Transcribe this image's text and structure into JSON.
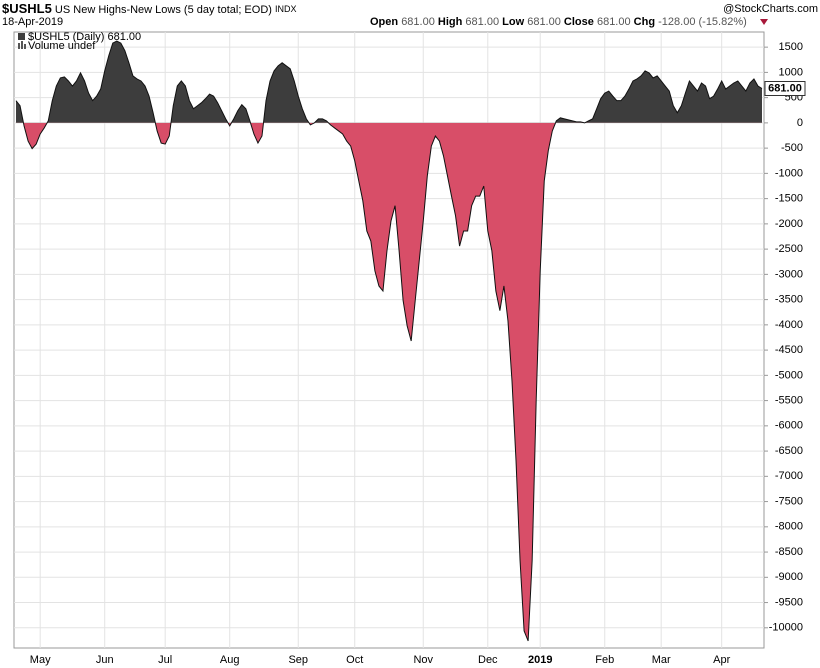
{
  "header": {
    "symbol": "$USHL5",
    "name": "US New Highs-New Lows (5 day total; EOD)",
    "exchange": "INDX",
    "date": "18-Apr-2019",
    "open_label": "Open",
    "open": "681.00",
    "high_label": "High",
    "high": "681.00",
    "low_label": "Low",
    "low": "681.00",
    "close_label": "Close",
    "close": "681.00",
    "chg_label": "Chg",
    "chg": "-128.00 (-15.82%)",
    "source": "@StockCharts.com"
  },
  "chart_data": {
    "type": "area",
    "legend": [
      "$USHL5 (Daily) 681.00",
      "Volume undef"
    ],
    "pos_color": "#3d3d3d",
    "neg_color": "#d84e68",
    "grid": true,
    "ylim": [
      -10400,
      1800
    ],
    "yticks": [
      1500,
      1000,
      500,
      0,
      -500,
      -1000,
      -1500,
      -2000,
      -2500,
      -3000,
      -3500,
      -4000,
      -4500,
      -5000,
      -5500,
      -6000,
      -6500,
      -7000,
      -7500,
      -8000,
      -8500,
      -9000,
      -9500,
      -10000
    ],
    "categories": [
      null,
      null,
      null,
      null,
      null,
      null,
      "May",
      null,
      null,
      null,
      null,
      null,
      null,
      null,
      null,
      null,
      null,
      null,
      null,
      null,
      null,
      null,
      "Jun",
      null,
      null,
      null,
      null,
      null,
      null,
      null,
      null,
      null,
      null,
      null,
      null,
      null,
      null,
      "Jul",
      null,
      null,
      null,
      null,
      null,
      null,
      null,
      null,
      null,
      null,
      null,
      null,
      null,
      null,
      null,
      "Aug",
      null,
      null,
      null,
      null,
      null,
      null,
      null,
      null,
      null,
      null,
      null,
      null,
      null,
      null,
      null,
      null,
      "Sep",
      null,
      null,
      null,
      null,
      null,
      null,
      null,
      null,
      null,
      null,
      null,
      null,
      null,
      "Oct",
      null,
      null,
      null,
      null,
      null,
      null,
      null,
      null,
      null,
      null,
      null,
      null,
      null,
      null,
      null,
      null,
      "Nov",
      null,
      null,
      null,
      null,
      null,
      null,
      null,
      null,
      null,
      null,
      null,
      null,
      null,
      null,
      null,
      "Dec",
      null,
      null,
      null,
      null,
      null,
      null,
      null,
      null,
      null,
      null,
      null,
      null,
      "2019",
      null,
      null,
      null,
      null,
      null,
      null,
      null,
      null,
      null,
      null,
      null,
      null,
      null,
      null,
      null,
      "Feb",
      null,
      null,
      null,
      null,
      null,
      null,
      null,
      null,
      null,
      null,
      null,
      null,
      null,
      "Mar",
      null,
      null,
      null,
      null,
      null,
      null,
      null,
      null,
      null,
      null,
      null,
      null,
      null,
      null,
      "Apr",
      null,
      null,
      null,
      null,
      null,
      null,
      null,
      null,
      null,
      null
    ],
    "values": [
      440,
      340,
      -60,
      -360,
      -510,
      -420,
      -220,
      -100,
      40,
      440,
      730,
      890,
      910,
      830,
      730,
      830,
      990,
      830,
      590,
      440,
      530,
      670,
      1030,
      1330,
      1580,
      1620,
      1580,
      1430,
      1190,
      930,
      870,
      830,
      730,
      530,
      200,
      -160,
      -400,
      -420,
      -260,
      340,
      730,
      830,
      730,
      440,
      280,
      340,
      400,
      480,
      570,
      530,
      400,
      240,
      80,
      -60,
      80,
      240,
      360,
      280,
      40,
      -220,
      -400,
      -260,
      440,
      830,
      1030,
      1130,
      1190,
      1130,
      1070,
      830,
      530,
      280,
      80,
      -40,
      0,
      80,
      80,
      40,
      -40,
      -100,
      -160,
      -220,
      -360,
      -460,
      -750,
      -1150,
      -1540,
      -2140,
      -2340,
      -2930,
      -3230,
      -3330,
      -2530,
      -1940,
      -1640,
      -2530,
      -3520,
      -4020,
      -4320,
      -3520,
      -2730,
      -1940,
      -1050,
      -460,
      -260,
      -360,
      -650,
      -1050,
      -1450,
      -1840,
      -2440,
      -2140,
      -2140,
      -1640,
      -1450,
      -1450,
      -1250,
      -2140,
      -2530,
      -3330,
      -3720,
      -3230,
      -3920,
      -5110,
      -6690,
      -8670,
      -10060,
      -10260,
      -8670,
      -5500,
      -2930,
      -1150,
      -550,
      -160,
      40,
      100,
      80,
      60,
      40,
      20,
      20,
      0,
      40,
      80,
      280,
      480,
      590,
      630,
      530,
      440,
      440,
      530,
      670,
      830,
      870,
      930,
      1030,
      990,
      890,
      930,
      830,
      730,
      630,
      340,
      200,
      340,
      590,
      830,
      730,
      630,
      790,
      730,
      480,
      530,
      670,
      830,
      670,
      730,
      790,
      830,
      730,
      630,
      790,
      870,
      730,
      681
    ]
  }
}
